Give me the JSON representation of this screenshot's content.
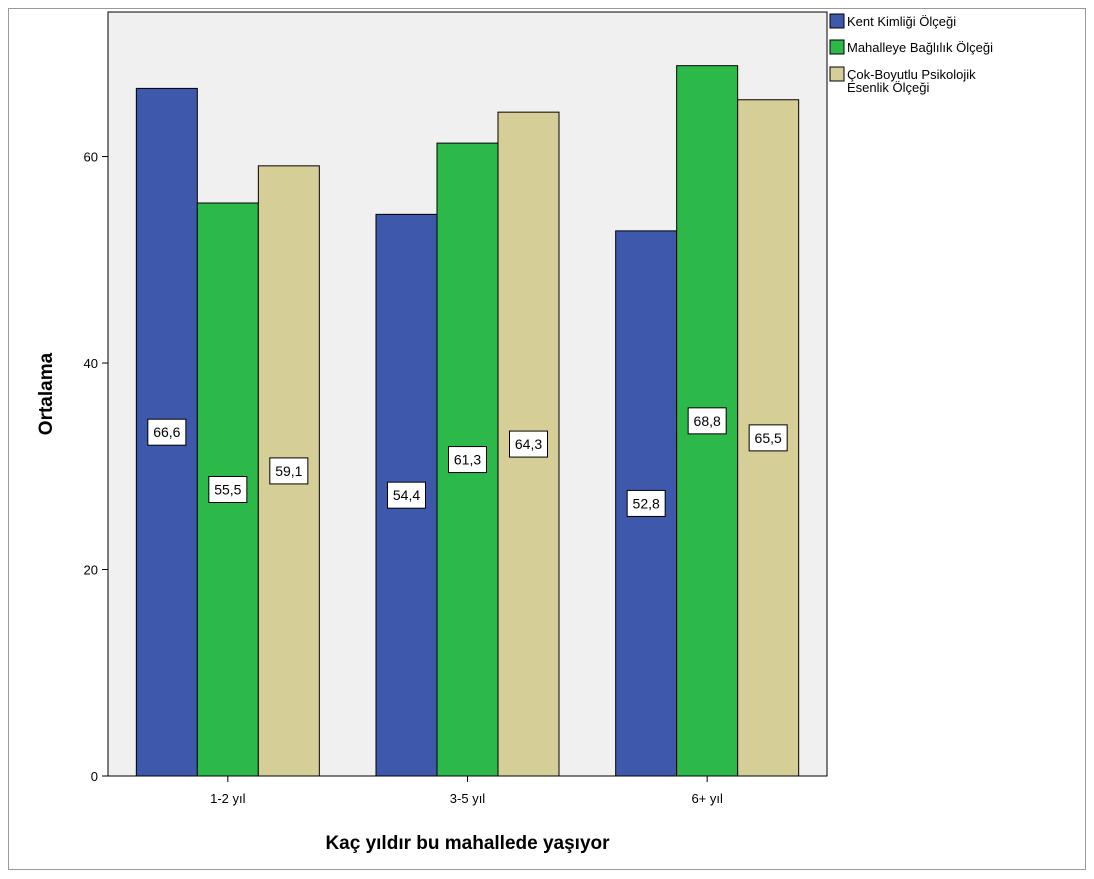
{
  "chart_data": {
    "type": "bar",
    "title": "",
    "xlabel": "Kaç yıldır bu mahallede yaşıyor",
    "ylabel": "Ortalama",
    "ylim": [
      0,
      74
    ],
    "yticks": [
      0,
      20,
      40,
      60
    ],
    "categories": [
      "1-2 yıl",
      "3-5 yıl",
      "6+ yıl"
    ],
    "series": [
      {
        "name": "Kent Kimliği Ölçeği",
        "color": "#3e59ab",
        "values": [
          66.6,
          54.4,
          52.8
        ],
        "labels": [
          "66,6",
          "54,4",
          "52,8"
        ]
      },
      {
        "name": "Mahalleye Bağlılık Ölçeği",
        "color": "#2db84a",
        "values": [
          55.5,
          61.3,
          68.8
        ],
        "labels": [
          "55,5",
          "61,3",
          "68,8"
        ]
      },
      {
        "name": "Çok-Boyutlu Psikolojik Esenlik Ölçeği",
        "color": "#d5cf97",
        "values": [
          59.1,
          64.3,
          65.5
        ],
        "labels": [
          "59,1",
          "64,3",
          "65,5"
        ]
      }
    ],
    "legend_position": "top-right",
    "plot_background": "#f0f0f0",
    "grid": false
  }
}
